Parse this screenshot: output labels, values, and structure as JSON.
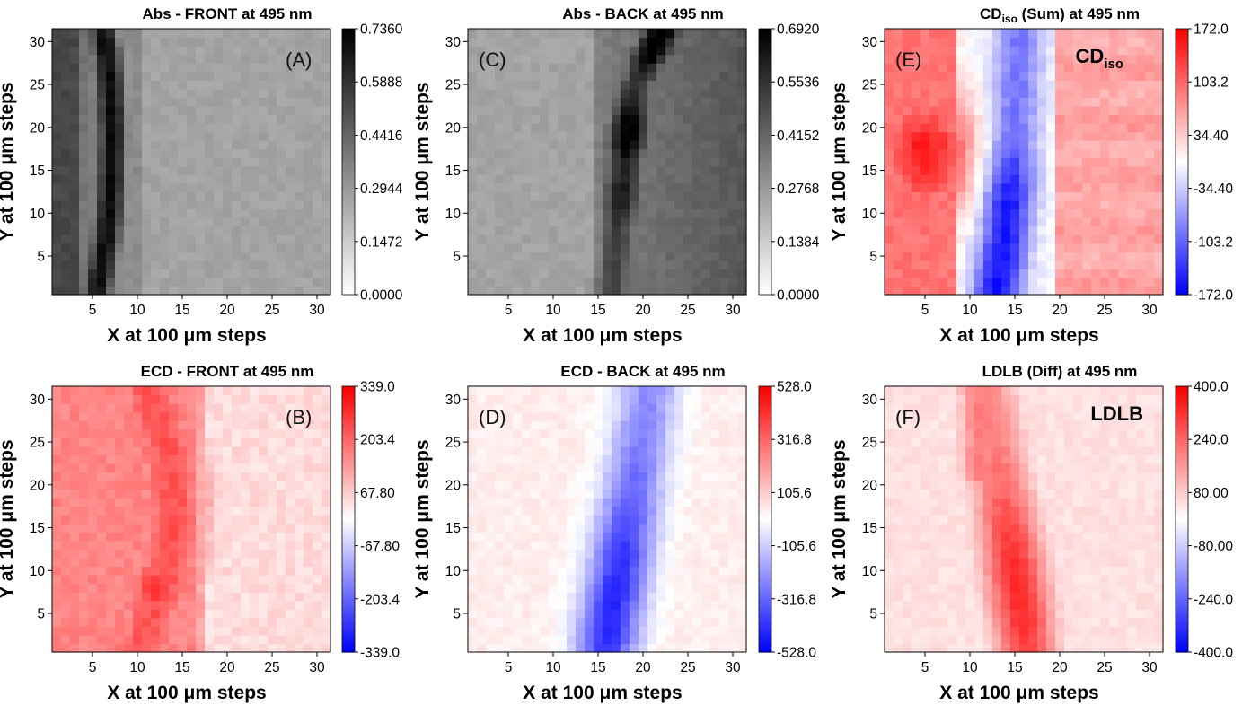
{
  "chart_data": [
    {
      "type": "heatmap",
      "panel": "A",
      "title": "Abs - FRONT at 495 nm",
      "xlabel": "X at 100 μm steps",
      "ylabel": "Y at 100 μm steps",
      "xticks": [
        "5",
        "10",
        "15",
        "20",
        "25",
        "30"
      ],
      "yticks": [
        "5",
        "10",
        "15",
        "20",
        "25",
        "30"
      ],
      "xlim": [
        0.5,
        31.5
      ],
      "ylim": [
        0.5,
        31.5
      ],
      "colormap": "gray",
      "colorbar_ticks": [
        "0.7360",
        "0.5888",
        "0.4416",
        "0.2944",
        "0.1472",
        "0.0000"
      ],
      "zlim": [
        0,
        0.736
      ],
      "pattern": "dark arc band near x=5-8 bulging to x=8 around y=16-20; left region medium gray; right of x=10 light uniform gray ~0.35"
    },
    {
      "type": "heatmap",
      "panel": "C",
      "title": "Abs - BACK at 495 nm",
      "xlabel": "X at 100 μm steps",
      "ylabel": "Y at 100 μm steps",
      "xticks": [
        "5",
        "10",
        "15",
        "20",
        "25",
        "30"
      ],
      "yticks": [
        "5",
        "10",
        "15",
        "20",
        "25",
        "30"
      ],
      "xlim": [
        0.5,
        31.5
      ],
      "ylim": [
        0.5,
        31.5
      ],
      "colormap": "gray",
      "colorbar_ticks": [
        "0.6920",
        "0.5536",
        "0.4152",
        "0.2768",
        "0.1384",
        "0.0000"
      ],
      "zlim": [
        0,
        0.692
      ],
      "pattern": "dark vertical band x=16-21 darkest at top (x~21, y~28-31) and y~20; left light gray ~0.33, right medium gray"
    },
    {
      "type": "heatmap",
      "panel": "E",
      "title": "CDiso (Sum) at 495 nm",
      "title_main": "CD",
      "title_sub": "iso",
      "title_rest": " (Sum) at 495 nm",
      "inset_main": "CD",
      "inset_sub": "iso",
      "xlabel": "X at 100 μm steps",
      "ylabel": "Y at 100 μm steps",
      "xticks": [
        "5",
        "10",
        "15",
        "20",
        "25",
        "30"
      ],
      "yticks": [
        "5",
        "10",
        "15",
        "20",
        "25",
        "30"
      ],
      "xlim": [
        0.5,
        31.5
      ],
      "ylim": [
        0.5,
        31.5
      ],
      "colormap": "bwr",
      "colorbar_ticks": [
        "172.0",
        "103.2",
        "34.40",
        "-34.40",
        "-103.2",
        "-172.0"
      ],
      "zlim": [
        -172,
        172
      ],
      "pattern": "strong positive (red) lobe left centered x~5,y~17; negative blue band x~12-18 strongest near x~14,y~3; light red on right"
    },
    {
      "type": "heatmap",
      "panel": "B",
      "title": "ECD - FRONT at 495 nm",
      "xlabel": "X at 100 μm steps",
      "ylabel": "Y at 100 μm steps",
      "xticks": [
        "5",
        "10",
        "15",
        "20",
        "25",
        "30"
      ],
      "yticks": [
        "5",
        "10",
        "15",
        "20",
        "25",
        "30"
      ],
      "xlim": [
        0.5,
        31.5
      ],
      "ylim": [
        0.5,
        31.5
      ],
      "colormap": "bwr",
      "colorbar_ticks": [
        "339.0",
        "203.4",
        "67.80",
        "-67.80",
        "-203.4",
        "-339.0"
      ],
      "zlim": [
        -339,
        339
      ],
      "pattern": "red region x<17 with strongest band along x~8-16 curved; hotspot x~12,y~8; pale pink right of x=18"
    },
    {
      "type": "heatmap",
      "panel": "D",
      "title": "ECD - BACK at 495 nm",
      "xlabel": "X at 100 μm steps",
      "ylabel": "Y at 100 μm steps",
      "xticks": [
        "5",
        "10",
        "15",
        "20",
        "25",
        "30"
      ],
      "yticks": [
        "5",
        "10",
        "15",
        "20",
        "25",
        "30"
      ],
      "xlim": [
        0.5,
        31.5
      ],
      "ylim": [
        0.5,
        31.5
      ],
      "colormap": "bwr",
      "colorbar_ticks": [
        "528.0",
        "316.8",
        "105.6",
        "-105.6",
        "-316.8",
        "-528.0"
      ],
      "zlim": [
        -528,
        528
      ],
      "pattern": "blue diagonal band from x~17,y~1 to x~21,y~31, deepest near x~17,y~5; pale pink elsewhere"
    },
    {
      "type": "heatmap",
      "panel": "F",
      "title": "LDLB (Diff) at 495 nm",
      "inset_main": "LDLB",
      "xlabel": "X at 100 μm steps",
      "ylabel": "Y at 100 μm steps",
      "xticks": [
        "5",
        "10",
        "15",
        "20",
        "25",
        "30"
      ],
      "yticks": [
        "5",
        "10",
        "15",
        "20",
        "25",
        "30"
      ],
      "xlim": [
        0.5,
        31.5
      ],
      "ylim": [
        0.5,
        31.5
      ],
      "colormap": "bwr",
      "colorbar_ticks": [
        "400.0",
        "240.0",
        "80.00",
        "-80.00",
        "-240.0",
        "-400.0"
      ],
      "zlim": [
        -400,
        400
      ],
      "pattern": "red band from x~11,y~31 to x~16,y~5, strongest near x~15,y~7; pale pink left and right"
    }
  ]
}
